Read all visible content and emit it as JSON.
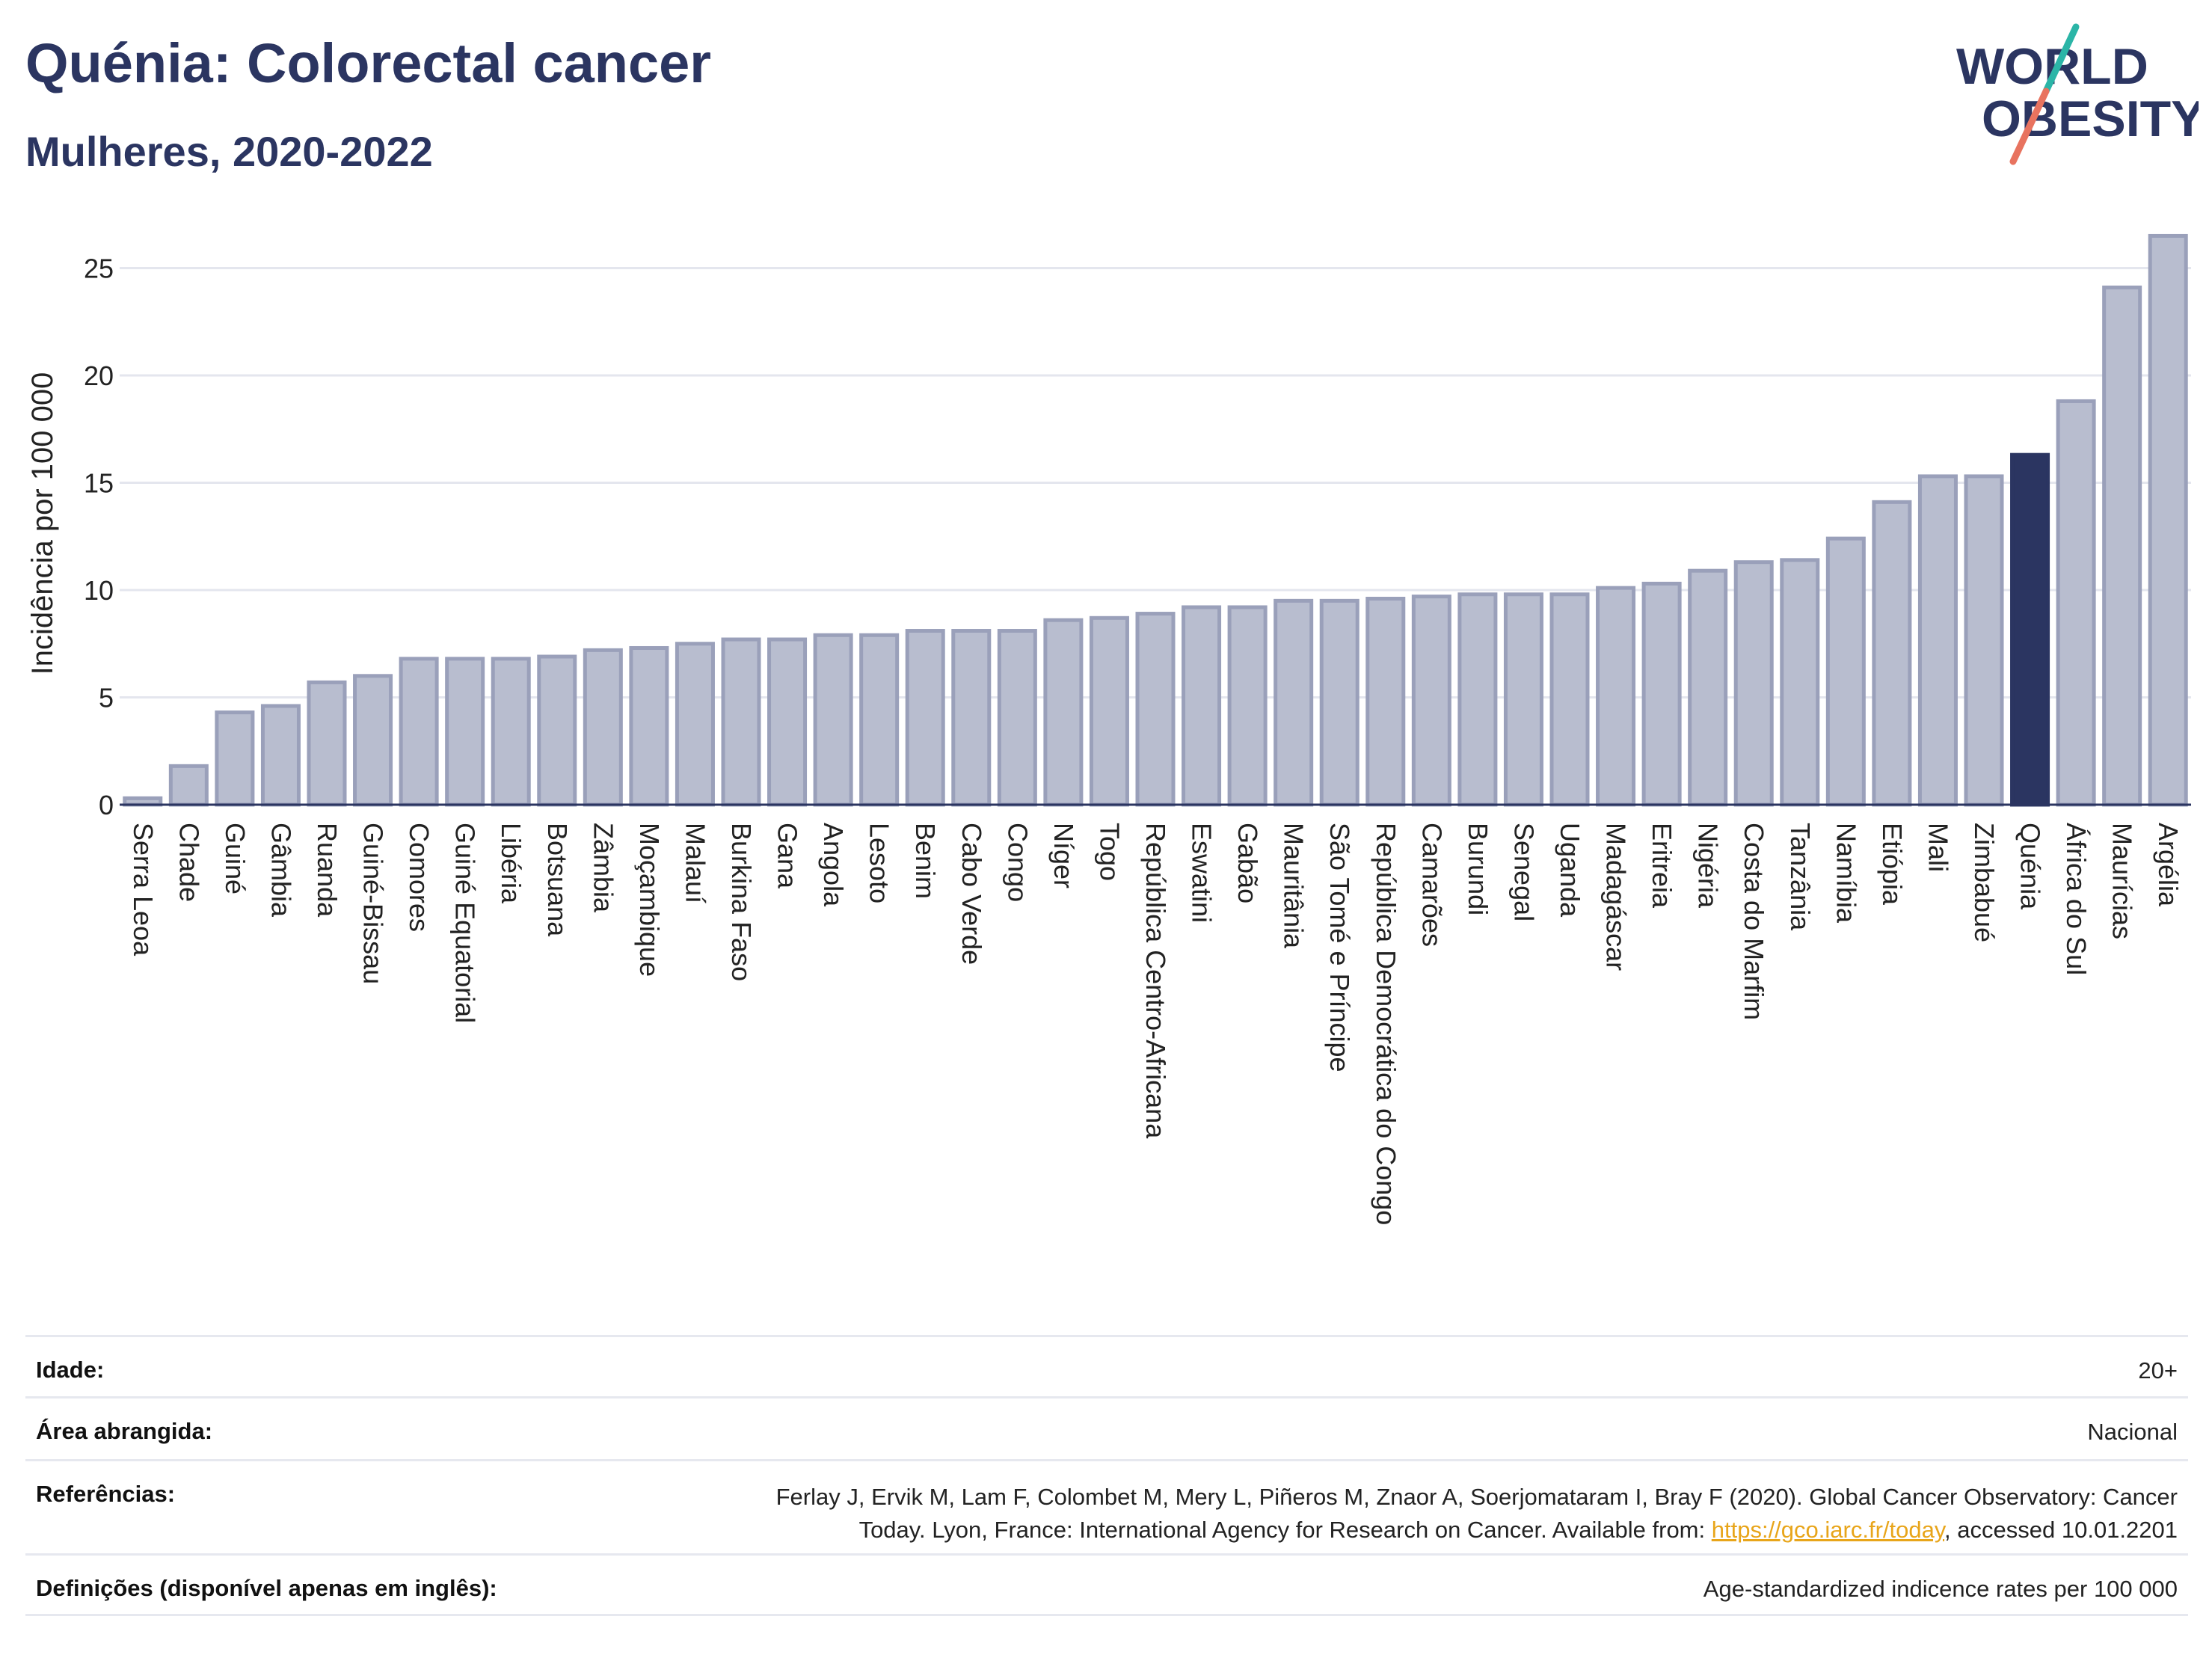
{
  "header": {
    "title": "Quénia: Colorectal cancer",
    "subtitle": "Mulheres, 2020-2022"
  },
  "logo": {
    "line1": "WORLD",
    "line2": "OBESITY",
    "colors": {
      "text": "#2b3561",
      "slash_teal": "#2bb5a7",
      "slash_coral": "#e8735f"
    }
  },
  "colors": {
    "bar_fill": "#b8bdcf",
    "bar_stroke": "#9aa0ba",
    "highlight": "#2b3561",
    "grid": "#e4e6ee",
    "axis": "#2b3561"
  },
  "chart_data": {
    "type": "bar",
    "title": "Quénia: Colorectal cancer",
    "subtitle": "Mulheres, 2020-2022",
    "ylabel": "Incidência por 100 000",
    "xlabel": "",
    "ylim": [
      0,
      27
    ],
    "yticks": [
      0,
      5,
      10,
      15,
      20,
      25
    ],
    "grid": true,
    "highlight": "Quénia",
    "categories": [
      "Serra Leoa",
      "Chade",
      "Guiné",
      "Gâmbia",
      "Ruanda",
      "Guiné-Bissau",
      "Comores",
      "Guiné Equatorial",
      "Libéria",
      "Botsuana",
      "Zâmbia",
      "Moçambique",
      "Malauí",
      "Burkina Faso",
      "Gana",
      "Angola",
      "Lesoto",
      "Benim",
      "Cabo Verde",
      "Congo",
      "Níger",
      "Togo",
      "República Centro-Africana",
      "Eswatini",
      "Gabão",
      "Mauritânia",
      "São Tomé e Príncipe",
      "República Democrática do Congo",
      "Camarões",
      "Burundi",
      "Senegal",
      "Uganda",
      "Madagáscar",
      "Eritreia",
      "Nigéria",
      "Costa do Marfim",
      "Tanzânia",
      "Namíbia",
      "Etiópia",
      "Mali",
      "Zimbabué",
      "Quénia",
      "África do Sul",
      "Maurícias",
      "Argélia"
    ],
    "values": [
      0.3,
      1.8,
      4.3,
      4.6,
      5.7,
      6.0,
      6.8,
      6.8,
      6.8,
      6.9,
      7.2,
      7.3,
      7.5,
      7.7,
      7.7,
      7.9,
      7.9,
      8.1,
      8.1,
      8.1,
      8.6,
      8.7,
      8.9,
      9.2,
      9.2,
      9.5,
      9.5,
      9.6,
      9.7,
      9.8,
      9.8,
      9.8,
      10.1,
      10.3,
      10.9,
      11.3,
      11.4,
      12.4,
      14.1,
      15.3,
      15.3,
      16.3,
      18.8,
      24.1,
      26.5
    ]
  },
  "info": {
    "rows": [
      {
        "key": "Idade:",
        "value": "20+"
      },
      {
        "key": "Área abrangida:",
        "value": "Nacional"
      },
      {
        "key": "Referências:",
        "value_line1": "Ferlay J, Ervik M, Lam F, Colombet M, Mery L, Piñeros M, Znaor A, Soerjomataram I, Bray F (2020). Global Cancer Observatory: Cancer",
        "value_line2_pre": "Today. Lyon, France: International Agency for Research on Cancer. Available from: ",
        "link": "https://gco.iarc.fr/today",
        "value_line2_post": ", accessed 10.01.2201"
      },
      {
        "key": "Definições (disponível apenas em inglês):",
        "value": "Age-standardized indicence rates per 100 000"
      }
    ]
  }
}
